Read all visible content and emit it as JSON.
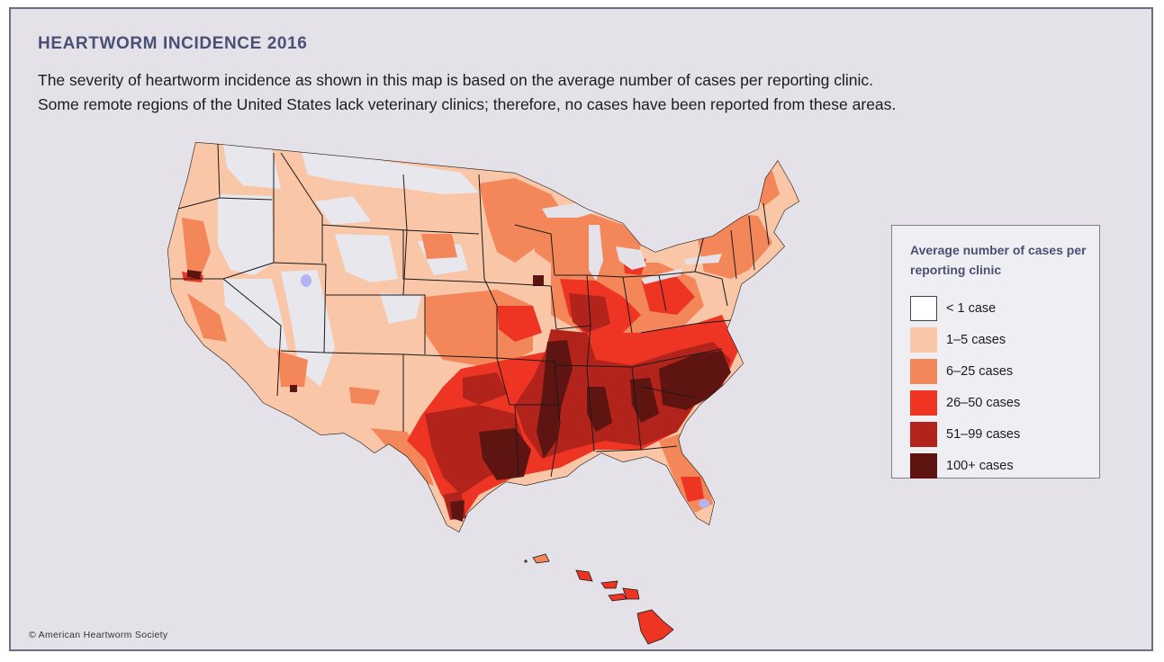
{
  "title": "HEARTWORM INCIDENCE 2016",
  "description": {
    "line1": "The severity of heartworm incidence as shown in this map is based on the average number of cases per reporting clinic.",
    "line2": "Some remote regions of the United States lack veterinary clinics; therefore, no cases have been reported from these areas."
  },
  "legend": {
    "title": "Average number of cases per reporting clinic",
    "items": [
      {
        "label": "< 1 case",
        "color": "#ffffff"
      },
      {
        "label": "1–5 cases",
        "color": "#f9c6a8"
      },
      {
        "label": "6–25 cases",
        "color": "#f3875a"
      },
      {
        "label": "26–50 cases",
        "color": "#ee3524"
      },
      {
        "label": "51–99 cases",
        "color": "#b1231b"
      },
      {
        "label": "100+ cases",
        "color": "#5e1410"
      }
    ]
  },
  "map": {
    "water_color": "#b4b4f2",
    "border_color": "#1a1a1a"
  },
  "copyright": "© American Heartworm Society"
}
